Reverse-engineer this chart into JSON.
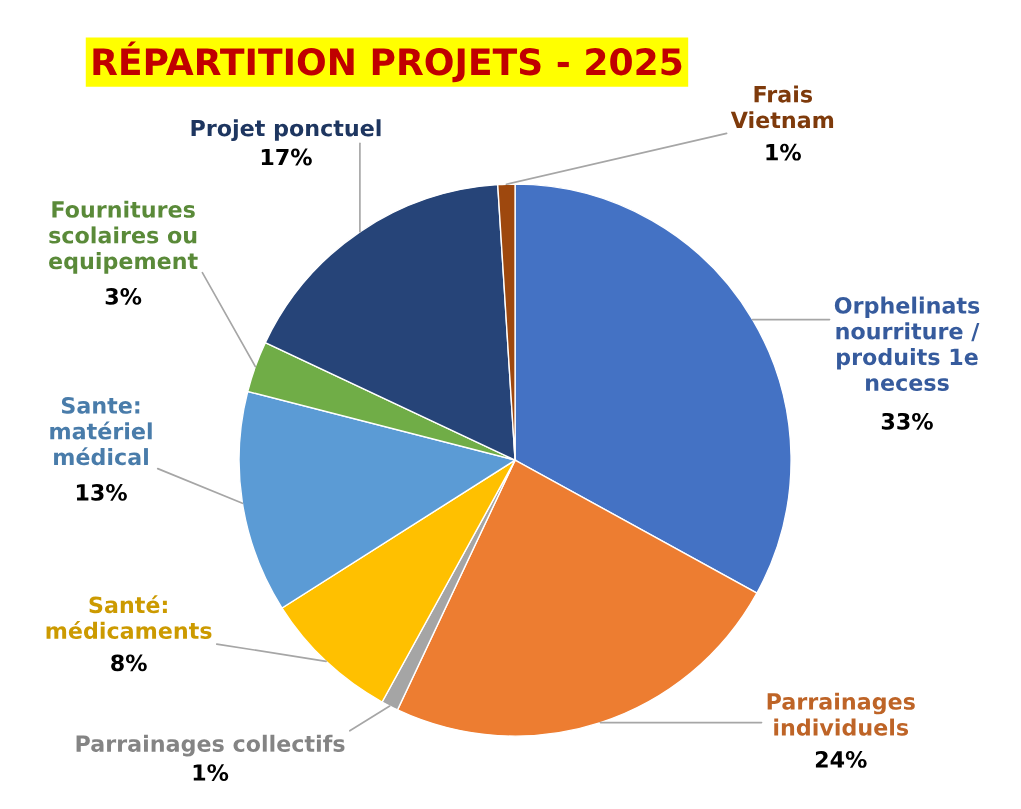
{
  "chart_data": {
    "type": "pie",
    "title": "RÉPARTITION PROJETS - 2025",
    "categories": [
      "Orphelinats\nnourriture /\nproduits 1e\nnecess",
      "Parrainages\nindividuels",
      "Parrainages collectifs",
      "Santé:\nmédicaments",
      "Sante:\nmatériel\nmédical",
      "Fournitures\nscolaires ou\nequipement",
      "Projet ponctuel",
      "Frais\nVietnam"
    ],
    "values": [
      33,
      24,
      1,
      8,
      13,
      3,
      17,
      1
    ],
    "value_labels": [
      "33%",
      "24%",
      "1%",
      "8%",
      "13%",
      "3%",
      "17%",
      "1%"
    ],
    "colors": [
      "#4472c4",
      "#ed7d31",
      "#a5a5a5",
      "#ffc000",
      "#5b9bd5",
      "#70ad47",
      "#264478",
      "#9e480e"
    ],
    "legend": false
  }
}
